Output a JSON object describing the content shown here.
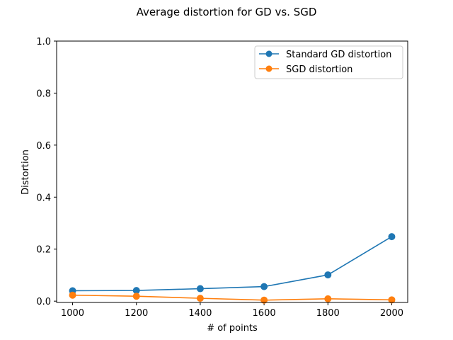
{
  "chart_data": {
    "type": "line",
    "title": "Average distortion for GD vs. SGD",
    "xlabel": "# of points",
    "ylabel": "Distortion",
    "x": [
      1000,
      1200,
      1400,
      1600,
      1800,
      2000
    ],
    "xlim": [
      950,
      2050
    ],
    "ylim": [
      -0.005,
      1.0
    ],
    "xticks": [
      1000,
      1200,
      1400,
      1600,
      1800,
      2000
    ],
    "yticks": [
      0.0,
      0.2,
      0.4,
      0.6,
      0.8,
      1.0
    ],
    "xtick_labels": [
      "1000",
      "1200",
      "1400",
      "1600",
      "1800",
      "2000"
    ],
    "ytick_labels": [
      "0.0",
      "0.2",
      "0.4",
      "0.6",
      "0.8",
      "1.0"
    ],
    "grid": false,
    "legend_position": "top-right",
    "series": [
      {
        "name": "Standard GD distortion",
        "color": "#1f77b4",
        "marker": "circle",
        "values": [
          0.04,
          0.041,
          0.048,
          0.056,
          0.101,
          0.248
        ]
      },
      {
        "name": "SGD distortion",
        "color": "#ff7f0e",
        "marker": "circle",
        "values": [
          0.023,
          0.019,
          0.011,
          0.004,
          0.009,
          0.005
        ]
      }
    ]
  }
}
